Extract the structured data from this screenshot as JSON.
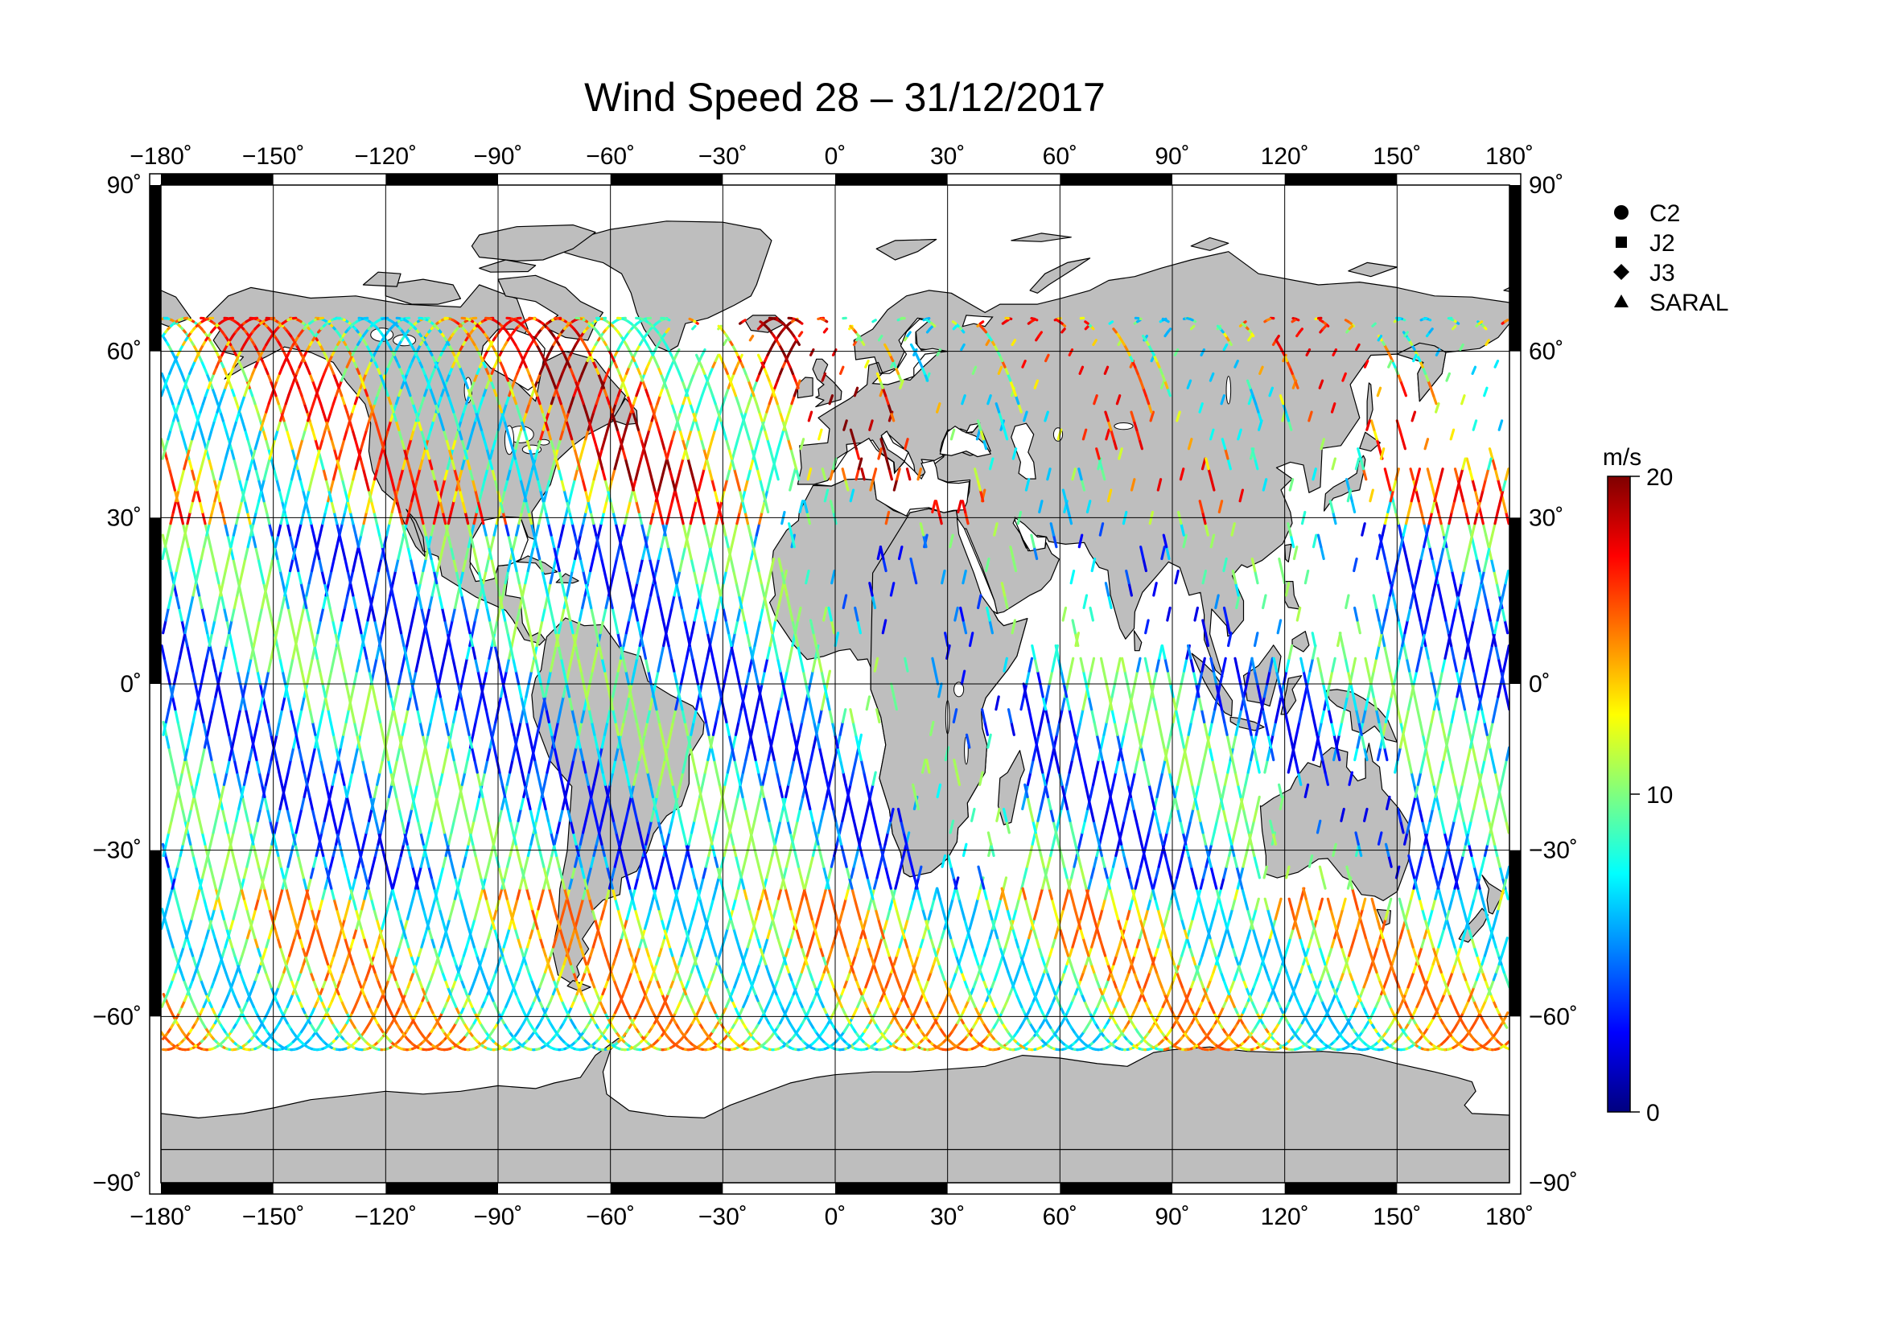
{
  "title": "Wind Speed 28 – 31/12/2017",
  "lon_ticks": [
    {
      "value": -180,
      "label": "−180˚"
    },
    {
      "value": -150,
      "label": "−150˚"
    },
    {
      "value": -120,
      "label": "−120˚"
    },
    {
      "value": -90,
      "label": "−90˚"
    },
    {
      "value": -60,
      "label": "−60˚"
    },
    {
      "value": -30,
      "label": "−30˚"
    },
    {
      "value": 0,
      "label": "0˚"
    },
    {
      "value": 30,
      "label": "30˚"
    },
    {
      "value": 60,
      "label": "60˚"
    },
    {
      "value": 90,
      "label": "90˚"
    },
    {
      "value": 120,
      "label": "120˚"
    },
    {
      "value": 150,
      "label": "150˚"
    },
    {
      "value": 180,
      "label": "180˚"
    }
  ],
  "lat_ticks": [
    {
      "value": 90,
      "label": "90˚"
    },
    {
      "value": 60,
      "label": "60˚"
    },
    {
      "value": 30,
      "label": "30˚"
    },
    {
      "value": 0,
      "label": "0˚"
    },
    {
      "value": -30,
      "label": "−30˚"
    },
    {
      "value": -60,
      "label": "−60˚"
    },
    {
      "value": -90,
      "label": "−90˚"
    }
  ],
  "legend": [
    {
      "symbol": "circle",
      "label": "C2"
    },
    {
      "symbol": "square",
      "label": "J2"
    },
    {
      "symbol": "diamond",
      "label": "J3"
    },
    {
      "symbol": "triangle",
      "label": "SARAL"
    }
  ],
  "colorbar": {
    "unit": "m/s",
    "min": 0,
    "max": 20,
    "ticks": [
      {
        "value": 20,
        "label": "20"
      },
      {
        "value": 10,
        "label": "10"
      },
      {
        "value": 0,
        "label": "0"
      }
    ],
    "stops": [
      "#00007f",
      "#0000ff",
      "#007fff",
      "#00ffff",
      "#7fff7f",
      "#ffff00",
      "#ff7f00",
      "#ff0000",
      "#7f0000"
    ]
  },
  "colors": {
    "land": "#bebebe",
    "coast": "#000000",
    "ocean": "#ffffff",
    "grid": "#000000"
  },
  "map_data": {
    "projection": "equirectangular",
    "lon_range": [
      -180,
      180
    ],
    "lat_range": [
      -90,
      90
    ],
    "track_speed_ranges": {
      "southern_ocean": [
        6,
        16
      ],
      "north_atlantic": [
        8,
        20
      ],
      "north_pacific": [
        6,
        18
      ],
      "tropics": [
        2,
        11
      ]
    }
  }
}
